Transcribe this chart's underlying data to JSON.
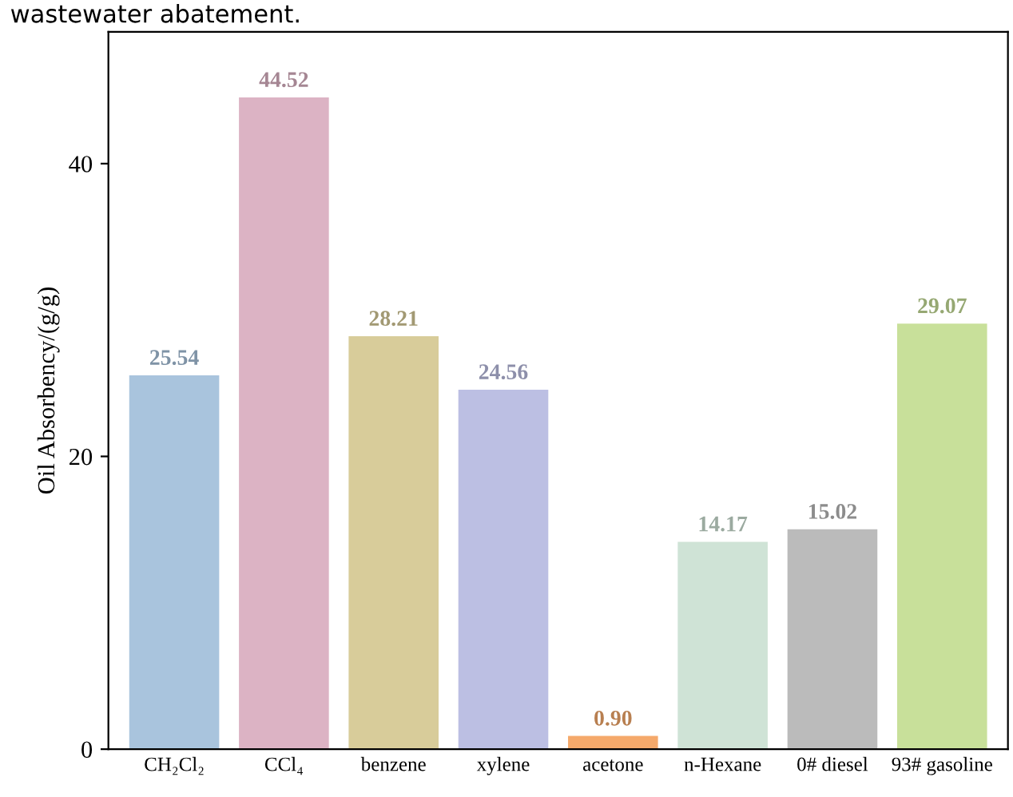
{
  "chart_data": {
    "type": "bar",
    "ylabel": "Oil Absorbency/(g/g)",
    "annotations": [
      "wastewater abatement."
    ],
    "categories": [
      "CH₂Cl₂",
      "CCl₄",
      "benzene",
      "xylene",
      "acetone",
      "n-Hexane",
      "0# diesel",
      "93# gasoline"
    ],
    "values": [
      25.54,
      44.52,
      28.21,
      24.56,
      0.9,
      14.17,
      15.02,
      29.07
    ],
    "colors": [
      "#a9c4dd",
      "#dcb3c4",
      "#d8cc9a",
      "#bcbfe3",
      "#f5a96b",
      "#cfe3d6",
      "#bbbbbb",
      "#c8e09a"
    ],
    "value_labels": [
      "25.54",
      "44.52",
      "28.21",
      "24.56",
      "0.90",
      "14.17",
      "15.02",
      "29.07"
    ],
    "ylim": [
      0,
      49
    ],
    "yticks": [
      0,
      20,
      40
    ],
    "grid": false,
    "legend": false
  }
}
